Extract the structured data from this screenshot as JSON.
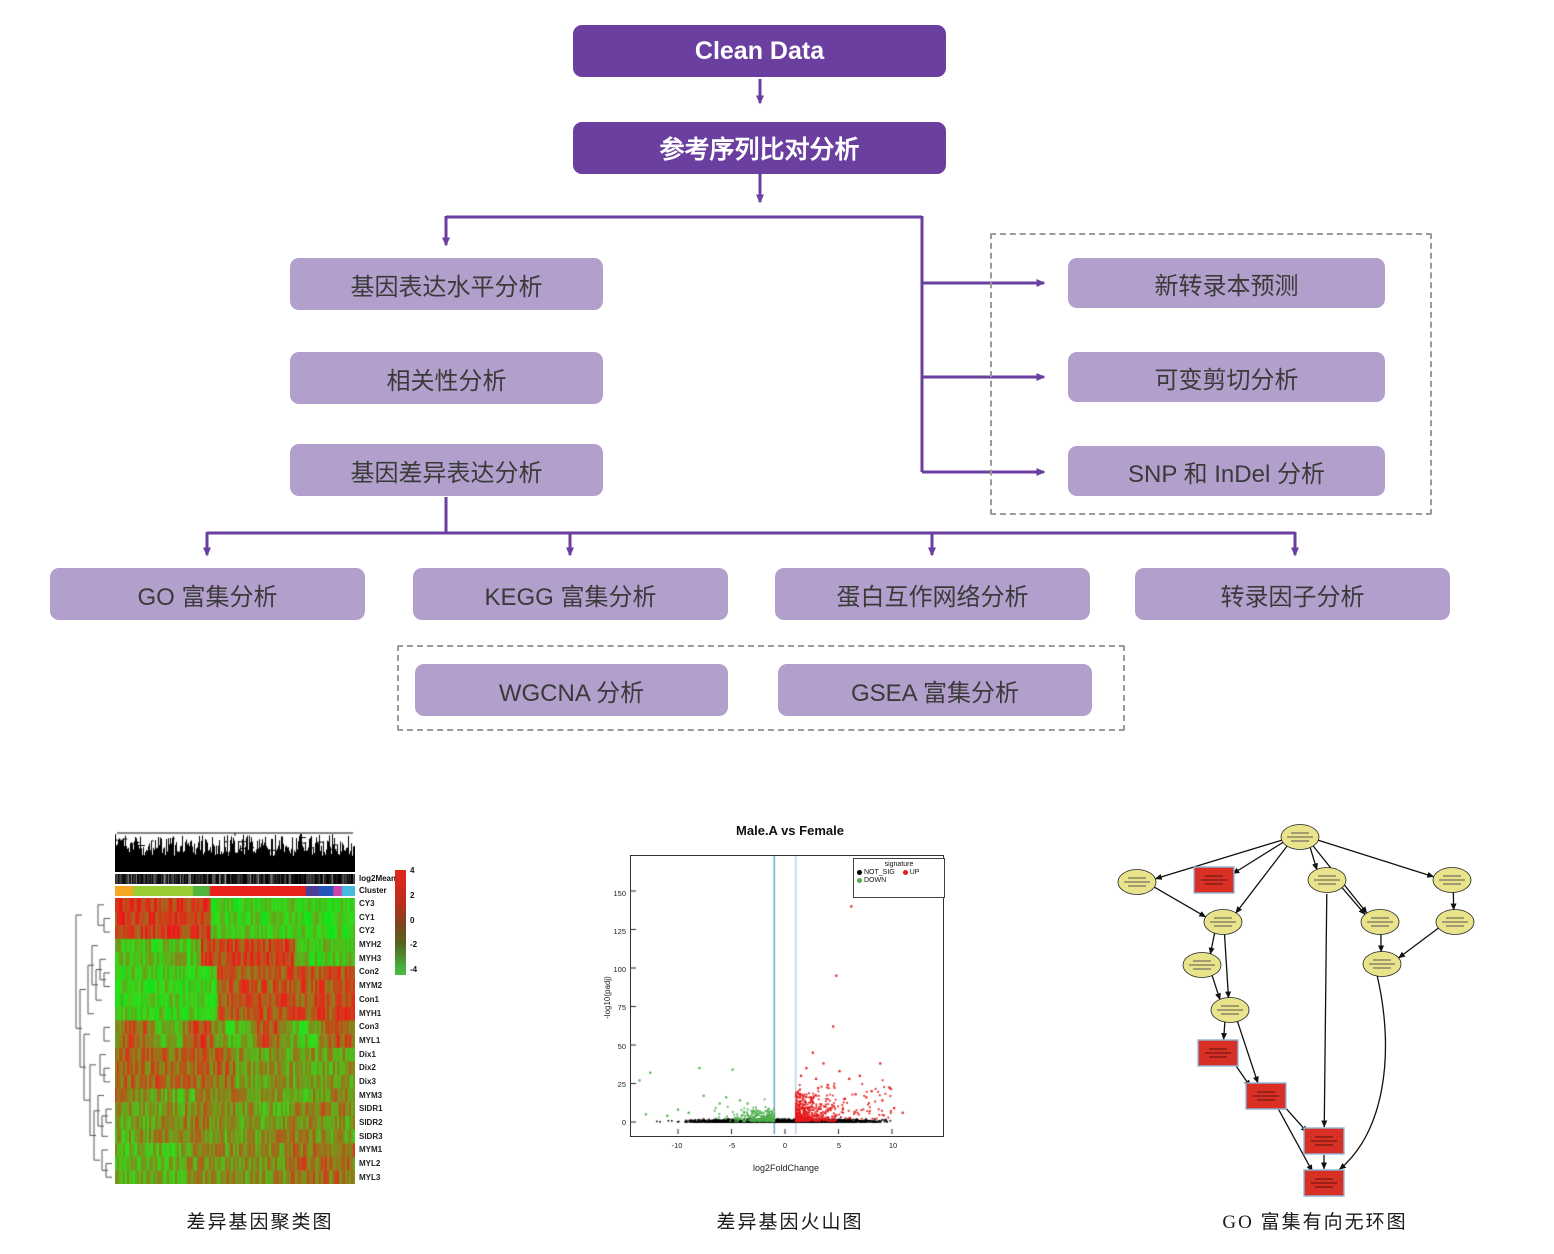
{
  "flowchart": {
    "nodes": {
      "clean_data": "Clean Data",
      "alignment": "参考序列比对分析",
      "gene_expression": "基因表达水平分析",
      "correlation": "相关性分析",
      "diff_expression": "基因差异表达分析",
      "novel_transcript": "新转录本预测",
      "alt_splicing": "可变剪切分析",
      "snp_indel": "SNP 和 InDel 分析",
      "go_enrich": "GO 富集分析",
      "kegg_enrich": "KEGG 富集分析",
      "ppi_network": "蛋白互作网络分析",
      "tf_analysis": "转录因子分析",
      "wgcna": "WGCNA 分析",
      "gsea": "GSEA 富集分析"
    },
    "colors": {
      "dark_box": "#6b3fa0",
      "light_box": "#b29fcb",
      "arrow": "#6b3fa0",
      "dashed_border": "#9a9a9a"
    }
  },
  "figures": {
    "heatmap": {
      "caption": "差异基因聚类图",
      "annotation_labels": [
        "log2Mean",
        "Cluster"
      ],
      "row_labels": [
        "CY3",
        "CY1",
        "CY2",
        "MYH2",
        "MYH3",
        "Con2",
        "MYM2",
        "Con1",
        "MYH1",
        "Con3",
        "MYL1",
        "Dix1",
        "Dix2",
        "Dix3",
        "MYM3",
        "SIDR1",
        "SIDR2",
        "SIDR3",
        "MYM1",
        "MYL2",
        "MYL3"
      ],
      "colorbar_ticks": [
        "4",
        "2",
        "0",
        "-2",
        "-4"
      ],
      "cluster_segments": [
        {
          "color": "#f5a623",
          "w": 7.5
        },
        {
          "color": "#9acc33",
          "w": 25
        },
        {
          "color": "#52b43c",
          "w": 7
        },
        {
          "color": "#e8211d",
          "w": 40
        },
        {
          "color": "#4b3f99",
          "w": 5.5
        },
        {
          "color": "#2356b8",
          "w": 6
        },
        {
          "color": "#cc44aa",
          "w": 3.5
        },
        {
          "color": "#44bbdd",
          "w": 5.5
        }
      ]
    },
    "volcano": {
      "caption": "差异基因火山图",
      "title": "Male.A vs Female",
      "xlabel": "log2FoldChange",
      "ylabel": "-log10(padj)",
      "x_ticks": [
        "-10",
        "-5",
        "0",
        "5",
        "10"
      ],
      "y_ticks": [
        "150",
        "125",
        "100",
        "75",
        "50",
        "25",
        "0"
      ],
      "legend_title": "signature",
      "legend_items": [
        {
          "label": "NOT_SIG",
          "color": "#000000"
        },
        {
          "label": "UP",
          "color": "#e41a1c"
        },
        {
          "label": "DOWN",
          "color": "#4daf4a"
        }
      ],
      "colors": {
        "up": "#e41a1c",
        "down": "#4daf4a",
        "not_sig": "#000000",
        "vline_left": "#6fa8c9",
        "vline_right": "#b9d4e8"
      }
    },
    "dag": {
      "caption": "GO 富集有向无环图",
      "colors": {
        "term_node": "#e9e48c",
        "enriched_node": "#d93025",
        "node_border": "#222222",
        "enriched_border": "#8fb6d9"
      }
    }
  }
}
